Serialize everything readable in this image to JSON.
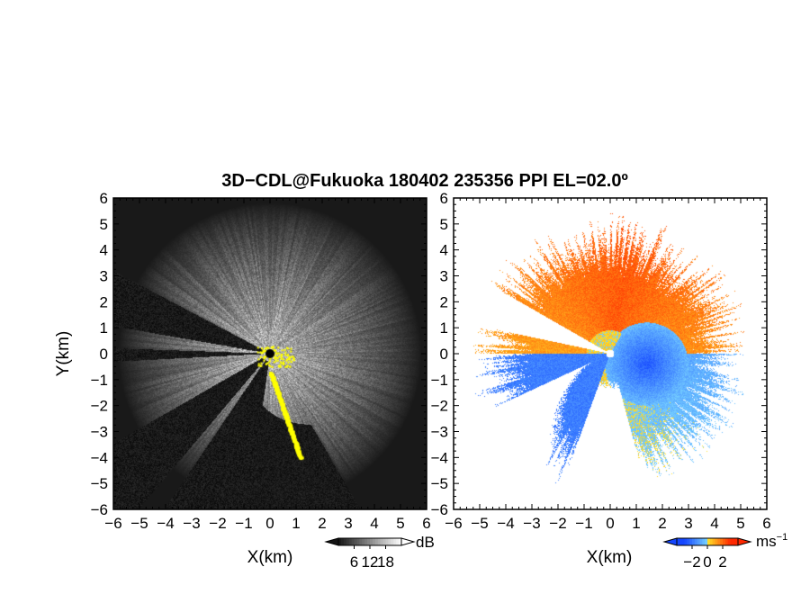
{
  "chart_data": [
    {
      "type": "heatmap",
      "title": "3D−CDL@Fukuoka 180402 235356 PPI EL=02.0º",
      "variable": "signal-to-noise ratio",
      "xlabel": "X(km)",
      "ylabel": "Y(km)",
      "xlim": [
        -6,
        6
      ],
      "ylim": [
        -6,
        6
      ],
      "x_ticks": [
        "−6",
        "−5",
        "−4",
        "−3",
        "−2",
        "−1",
        "0",
        "1",
        "2",
        "3",
        "4",
        "5",
        "6"
      ],
      "y_ticks": [
        "6",
        "5",
        "4",
        "3",
        "2",
        "1",
        "0",
        "−1",
        "−2",
        "−3",
        "−4",
        "−5",
        "−6"
      ],
      "colormap": "grayscale",
      "colorbar": {
        "unit": "dB",
        "ticks": [
          "6",
          "12",
          "18"
        ],
        "range": [
          0,
          24
        ]
      },
      "background_color": "#000000",
      "highlight_color": "#ffff00",
      "radar_position": [
        0,
        0
      ],
      "blocked_sectors_deg": [
        [
          152,
          170
        ],
        [
          178,
          183
        ],
        [
          210,
          230
        ],
        [
          236,
          262
        ]
      ]
    },
    {
      "type": "heatmap",
      "variable": "radial velocity",
      "xlabel": "X(km)",
      "ylabel": "",
      "xlim": [
        -6,
        6
      ],
      "ylim": [
        -6,
        6
      ],
      "x_ticks": [
        "−6",
        "−5",
        "−4",
        "−3",
        "−2",
        "−1",
        "0",
        "1",
        "2",
        "3",
        "4",
        "5",
        "6"
      ],
      "y_ticks": [
        "6",
        "5",
        "4",
        "3",
        "2",
        "1",
        "0",
        "−1",
        "−2",
        "−3",
        "−4",
        "−5",
        "−6"
      ],
      "colormap": "diverging blue-white-red",
      "colorbar": {
        "unit": "ms",
        "unit_exponent": "−1",
        "ticks": [
          "−2",
          "0",
          "2"
        ],
        "range": [
          -4,
          4
        ]
      },
      "colors": {
        "negative_max": "#1a40ff",
        "negative_min": "#40d0ff",
        "zero": "#ffffff",
        "positive_min": "#ffd000",
        "positive_max": "#ff2000"
      },
      "radar_position": [
        0,
        0
      ]
    }
  ]
}
